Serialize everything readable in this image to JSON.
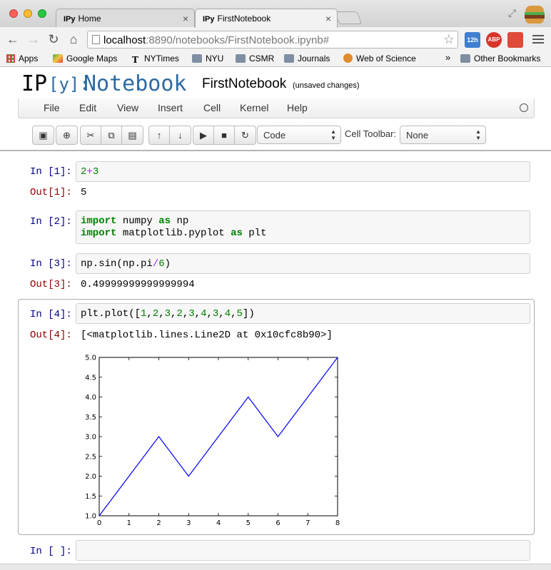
{
  "browser": {
    "tabs": [
      {
        "favicon": "IPy",
        "title": "Home",
        "active": false
      },
      {
        "favicon": "IPy",
        "title": "FirstNotebook",
        "active": true
      }
    ],
    "url_host": "localhost",
    "url_rest": ":8890/notebooks/FirstNotebook.ipynb#",
    "extensions": [
      {
        "icon": "calendar-icon",
        "text": "12h",
        "color": "#3f7fcf"
      },
      {
        "icon": "adblock-icon",
        "text": "ABP",
        "color": "#d9342b"
      },
      {
        "icon": "bookmark-ext-icon",
        "text": "",
        "color": "#e04a3a"
      }
    ],
    "bookmarks": [
      {
        "label": "Apps",
        "icon": "apps-grid-icon"
      },
      {
        "label": "Google Maps",
        "icon": "maps-icon"
      },
      {
        "label": "NYTimes",
        "icon": "nytimes-icon"
      },
      {
        "label": "NYU",
        "icon": "folder-icon"
      },
      {
        "label": "CSMR",
        "icon": "folder-icon"
      },
      {
        "label": "Journals",
        "icon": "folder-icon"
      },
      {
        "label": "Web of Science",
        "icon": "web-of-science-icon"
      }
    ],
    "overflow": "»",
    "other_bookmarks": "Other Bookmarks"
  },
  "notebook": {
    "logo_ip": "IP",
    "logo_y": "[y]:",
    "logo_notebook": "Notebook",
    "name": "FirstNotebook",
    "status": "(unsaved changes)",
    "menus": [
      "File",
      "Edit",
      "View",
      "Insert",
      "Cell",
      "Kernel",
      "Help"
    ],
    "cell_type": "Code",
    "cell_toolbar_label": "Cell Toolbar:",
    "cell_toolbar_value": "None"
  },
  "cells": {
    "c1": {
      "prompt": "In [1]:",
      "out_prompt": "Out[1]:",
      "out": "5"
    },
    "c2": {
      "prompt": "In [2]:"
    },
    "c3": {
      "prompt": "In [3]:",
      "out_prompt": "Out[3]:",
      "out": "0.49999999999999994"
    },
    "c4": {
      "prompt": "In [4]:",
      "out_prompt": "Out[4]:",
      "out": "[<matplotlib.lines.Line2D at 0x10cfc8b90>]"
    },
    "c5": {
      "prompt": "In [ ]:"
    }
  },
  "chart_data": {
    "type": "line",
    "x": [
      0,
      1,
      2,
      3,
      4,
      5,
      6,
      7,
      8
    ],
    "series": [
      {
        "values": [
          1,
          2,
          3,
          2,
          3,
          4,
          3,
          4,
          5
        ],
        "color": "#0000ff"
      }
    ],
    "xticks": [
      "0",
      "1",
      "2",
      "3",
      "4",
      "5",
      "6",
      "7",
      "8"
    ],
    "yticks": [
      "1.0",
      "1.5",
      "2.0",
      "2.5",
      "3.0",
      "3.5",
      "4.0",
      "4.5",
      "5.0"
    ],
    "xlim": [
      0,
      8
    ],
    "ylim": [
      1,
      5
    ],
    "grid": false
  }
}
